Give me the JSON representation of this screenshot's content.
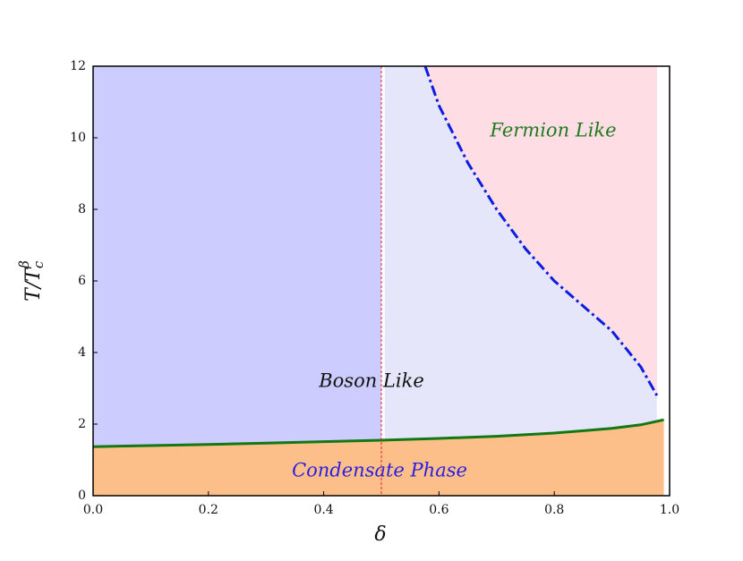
{
  "chart_data": {
    "type": "line",
    "x_label": "δ",
    "y_label": {
      "main": "T/T",
      "sub": "c",
      "sup": "β"
    },
    "xlim": [
      0,
      1
    ],
    "ylim": [
      0,
      12
    ],
    "xticks": [
      {
        "value": 0,
        "label": "0.0"
      },
      {
        "value": 0.2,
        "label": "0.2"
      },
      {
        "value": 0.4,
        "label": "0.4"
      },
      {
        "value": 0.6,
        "label": "0.6"
      },
      {
        "value": 0.8,
        "label": "0.8"
      },
      {
        "value": 1,
        "label": "1.0"
      }
    ],
    "yticks": [
      0,
      2,
      4,
      6,
      8,
      10,
      12
    ],
    "regions": [
      {
        "x": [
          0,
          0.5
        ],
        "color": "#ccccff"
      },
      {
        "x": [
          0.506,
          0.978
        ],
        "color": "#e6e6fa"
      }
    ],
    "fermion_region": {
      "color": "#ffdde5",
      "x_end": 0.978
    },
    "condensate_region": {
      "color": "#fdbf89",
      "x_end": 0.99
    },
    "vline": {
      "x": 0.5,
      "color": "#e8202a"
    },
    "boundary": {
      "color": "#0b1ee0",
      "x": [
        0.576,
        0.6,
        0.65,
        0.7,
        0.75,
        0.8,
        0.85,
        0.9,
        0.95,
        0.978
      ],
      "values": [
        12,
        10.9,
        9.3,
        8.0,
        6.9,
        6.0,
        5.3,
        4.6,
        3.6,
        2.8
      ]
    },
    "critical": {
      "color": "#137813",
      "x": [
        0,
        0.1,
        0.2,
        0.3,
        0.4,
        0.5,
        0.6,
        0.7,
        0.8,
        0.9,
        0.95,
        0.99
      ],
      "values": [
        1.37,
        1.4,
        1.43,
        1.47,
        1.51,
        1.55,
        1.6,
        1.66,
        1.75,
        1.88,
        1.98,
        2.12
      ]
    },
    "annotations": [
      {
        "text": "Fermion Like",
        "color": "#1f7a1f"
      },
      {
        "text": "Boson Like",
        "color": "#111111"
      },
      {
        "text": "Condensate Phase",
        "color": "#2a1ee0"
      }
    ]
  }
}
